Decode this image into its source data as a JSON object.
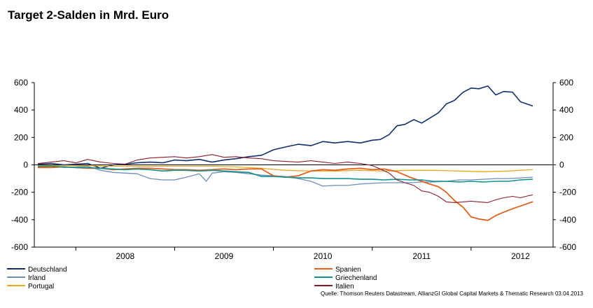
{
  "chart_data": {
    "type": "line",
    "title": "Target 2-Salden in Mrd. Euro",
    "source": "Quelle: Thomson Reuters Datastream, AllianzGI Global Capital Markets & Thematic Research 03.04.2013",
    "ylim": [
      -600,
      600
    ],
    "yticks": [
      -600,
      -400,
      -200,
      0,
      200,
      400,
      600
    ],
    "xlim": [
      2007.58,
      2012.83
    ],
    "xticks": [
      2008,
      2009,
      2010,
      2011,
      2012,
      2013
    ],
    "xtick_labels": [
      "2008",
      "2009",
      "2010",
      "2011",
      "2012"
    ],
    "xlabel_positions": [
      2007.5,
      2008.5,
      2009.5,
      2010.5,
      2011.5,
      2012.5
    ],
    "grid": false,
    "legend": "bottom",
    "series": [
      {
        "name": "Deutschland",
        "color": "#14306b",
        "width": 1.6,
        "x": [
          2007.62,
          2007.75,
          2007.88,
          2008.0,
          2008.12,
          2008.25,
          2008.38,
          2008.5,
          2008.62,
          2008.75,
          2008.88,
          2009.0,
          2009.12,
          2009.25,
          2009.38,
          2009.5,
          2009.62,
          2009.75,
          2009.88,
          2010.0,
          2010.12,
          2010.25,
          2010.38,
          2010.5,
          2010.62,
          2010.75,
          2010.88,
          2011.0,
          2011.08,
          2011.17,
          2011.25,
          2011.33,
          2011.42,
          2011.5,
          2011.58,
          2011.67,
          2011.75,
          2011.83,
          2011.92,
          2012.0,
          2012.08,
          2012.17,
          2012.25,
          2012.33,
          2012.42,
          2012.5,
          2012.58,
          2012.62
        ],
        "y": [
          5,
          10,
          0,
          5,
          10,
          -25,
          0,
          5,
          15,
          20,
          15,
          35,
          30,
          40,
          20,
          35,
          45,
          60,
          70,
          110,
          130,
          150,
          140,
          170,
          160,
          170,
          160,
          180,
          185,
          220,
          285,
          295,
          330,
          305,
          340,
          380,
          445,
          470,
          530,
          560,
          555,
          575,
          510,
          535,
          530,
          460,
          440,
          430
        ]
      },
      {
        "name": "Irland",
        "color": "#6e8eb8",
        "width": 1.3,
        "x": [
          2007.62,
          2007.75,
          2007.88,
          2008.0,
          2008.12,
          2008.25,
          2008.38,
          2008.5,
          2008.62,
          2008.75,
          2008.88,
          2009.0,
          2009.12,
          2009.25,
          2009.32,
          2009.38,
          2009.5,
          2009.62,
          2009.75,
          2009.88,
          2010.0,
          2010.12,
          2010.25,
          2010.38,
          2010.5,
          2010.62,
          2010.75,
          2010.88,
          2011.0,
          2011.12,
          2011.25,
          2011.38,
          2011.5,
          2011.62,
          2011.75,
          2011.88,
          2012.0,
          2012.12,
          2012.25,
          2012.38,
          2012.5,
          2012.62
        ],
        "y": [
          -15,
          -10,
          -20,
          -15,
          -10,
          -40,
          -55,
          -60,
          -65,
          -100,
          -110,
          -110,
          -90,
          -65,
          -120,
          -60,
          -50,
          -55,
          -65,
          -75,
          -80,
          -85,
          -100,
          -120,
          -155,
          -150,
          -150,
          -140,
          -135,
          -130,
          -130,
          -130,
          -125,
          -125,
          -120,
          -110,
          -110,
          -105,
          -100,
          -100,
          -95,
          -90
        ]
      },
      {
        "name": "Portugal",
        "color": "#e8a922",
        "width": 1.3,
        "x": [
          2007.62,
          2007.88,
          2008.12,
          2008.38,
          2008.62,
          2008.88,
          2009.12,
          2009.38,
          2009.62,
          2009.88,
          2010.12,
          2010.38,
          2010.62,
          2010.88,
          2011.12,
          2011.38,
          2011.62,
          2011.88,
          2012.12,
          2012.38,
          2012.62
        ],
        "y": [
          -5,
          -5,
          -5,
          -10,
          -10,
          -10,
          -10,
          -10,
          -15,
          -25,
          -40,
          -45,
          -45,
          -40,
          -45,
          -40,
          -40,
          -45,
          -50,
          -45,
          -35
        ]
      },
      {
        "name": "Spanien",
        "color": "#e0601e",
        "width": 1.8,
        "x": [
          2007.62,
          2007.75,
          2007.88,
          2008.0,
          2008.12,
          2008.25,
          2008.38,
          2008.5,
          2008.62,
          2008.75,
          2008.88,
          2009.0,
          2009.12,
          2009.25,
          2009.38,
          2009.5,
          2009.62,
          2009.75,
          2009.88,
          2010.0,
          2010.12,
          2010.25,
          2010.38,
          2010.5,
          2010.62,
          2010.75,
          2010.88,
          2011.0,
          2011.12,
          2011.25,
          2011.38,
          2011.5,
          2011.58,
          2011.67,
          2011.75,
          2011.83,
          2011.92,
          2012.0,
          2012.08,
          2012.17,
          2012.25,
          2012.33,
          2012.42,
          2012.5,
          2012.58,
          2012.62
        ],
        "y": [
          -20,
          -20,
          -15,
          -20,
          -25,
          -25,
          -35,
          -30,
          -25,
          -25,
          -30,
          -35,
          -35,
          -40,
          -35,
          -30,
          -35,
          -30,
          -30,
          -80,
          -90,
          -80,
          -45,
          -35,
          -40,
          -30,
          -25,
          -35,
          -30,
          -50,
          -90,
          -120,
          -140,
          -160,
          -200,
          -260,
          -310,
          -380,
          -395,
          -405,
          -370,
          -345,
          -320,
          -300,
          -280,
          -270
        ]
      },
      {
        "name": "Griechenland",
        "color": "#11918c",
        "width": 1.6,
        "x": [
          2007.62,
          2007.75,
          2007.88,
          2008.0,
          2008.12,
          2008.25,
          2008.38,
          2008.5,
          2008.62,
          2008.75,
          2008.88,
          2009.0,
          2009.12,
          2009.25,
          2009.38,
          2009.5,
          2009.62,
          2009.75,
          2009.88,
          2010.0,
          2010.12,
          2010.25,
          2010.38,
          2010.5,
          2010.62,
          2010.75,
          2010.88,
          2011.0,
          2011.12,
          2011.25,
          2011.38,
          2011.5,
          2011.62,
          2011.75,
          2011.88,
          2012.0,
          2012.12,
          2012.25,
          2012.38,
          2012.5,
          2012.62
        ],
        "y": [
          -10,
          -10,
          -15,
          -20,
          -20,
          -25,
          -30,
          -35,
          -30,
          -35,
          -45,
          -40,
          -40,
          -45,
          -40,
          -45,
          -50,
          -55,
          -85,
          -85,
          -90,
          -95,
          -95,
          -100,
          -100,
          -100,
          -105,
          -105,
          -110,
          -105,
          -110,
          -110,
          -120,
          -120,
          -125,
          -120,
          -125,
          -120,
          -120,
          -110,
          -105
        ]
      },
      {
        "name": "Italien",
        "color": "#8b1e2e",
        "width": 1.1,
        "x": [
          2007.62,
          2007.75,
          2007.88,
          2008.0,
          2008.12,
          2008.25,
          2008.38,
          2008.5,
          2008.62,
          2008.75,
          2008.88,
          2009.0,
          2009.12,
          2009.25,
          2009.38,
          2009.5,
          2009.62,
          2009.75,
          2009.88,
          2010.0,
          2010.12,
          2010.25,
          2010.38,
          2010.5,
          2010.62,
          2010.75,
          2010.88,
          2011.0,
          2011.08,
          2011.17,
          2011.25,
          2011.33,
          2011.42,
          2011.5,
          2011.58,
          2011.67,
          2011.75,
          2011.83,
          2011.92,
          2012.0,
          2012.08,
          2012.17,
          2012.25,
          2012.33,
          2012.42,
          2012.5,
          2012.58,
          2012.62
        ],
        "y": [
          10,
          20,
          30,
          15,
          40,
          20,
          10,
          5,
          35,
          50,
          55,
          60,
          50,
          60,
          75,
          55,
          60,
          50,
          45,
          30,
          25,
          20,
          30,
          20,
          10,
          20,
          10,
          -5,
          -30,
          -60,
          -110,
          -130,
          -150,
          -190,
          -200,
          -230,
          -270,
          -275,
          -270,
          -265,
          -270,
          -275,
          -255,
          -240,
          -230,
          -240,
          -225,
          -220
        ]
      }
    ]
  }
}
